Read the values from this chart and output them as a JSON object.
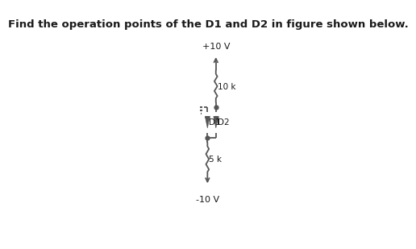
{
  "title": "Find the operation points of the D1 and D2 in figure shown below.",
  "title_fontsize": 9.5,
  "bg_color": "#ffffff",
  "text_color": "#1a1a1a",
  "line_color": "#555555",
  "plus10v_label": "+10 V",
  "minus10v_label": "-10 V",
  "r1_label": "10 k",
  "r2_label": "5 k",
  "d1_label": "D1",
  "d2_label": "D2"
}
